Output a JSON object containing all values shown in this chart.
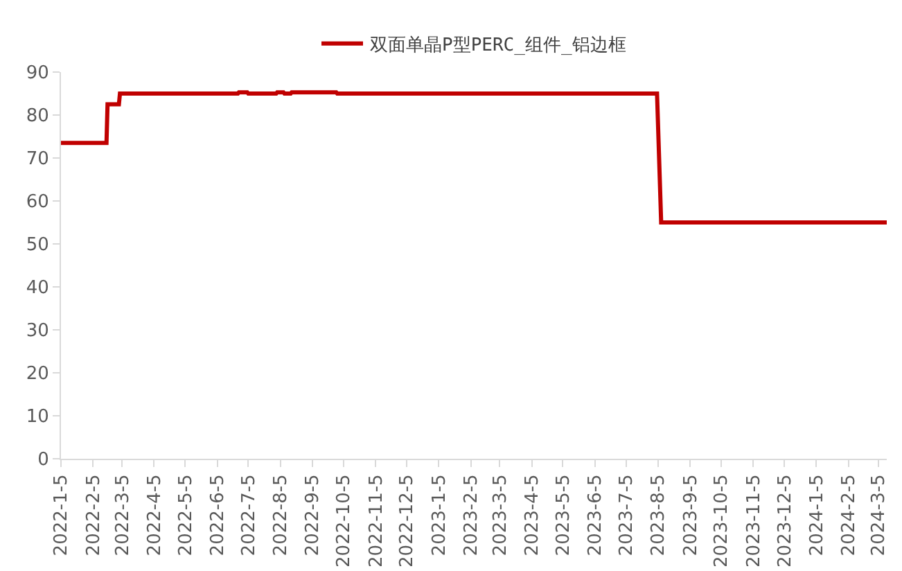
{
  "chart_data": {
    "type": "line",
    "legend": "top",
    "grid": false,
    "marker": "none",
    "line_style": "solid",
    "xlim": [
      "2022-01-05",
      "2024-03-13"
    ],
    "ylim": [
      0,
      90
    ],
    "yticks": [
      0,
      10,
      20,
      30,
      40,
      50,
      60,
      70,
      80,
      90
    ],
    "xticks": [
      {
        "value": "2022-01-05",
        "label": "2022-1-5"
      },
      {
        "value": "2022-02-05",
        "label": "2022-2-5"
      },
      {
        "value": "2022-03-05",
        "label": "2022-3-5"
      },
      {
        "value": "2022-04-05",
        "label": "2022-4-5"
      },
      {
        "value": "2022-05-05",
        "label": "2022-5-5"
      },
      {
        "value": "2022-06-05",
        "label": "2022-6-5"
      },
      {
        "value": "2022-07-05",
        "label": "2022-7-5"
      },
      {
        "value": "2022-08-05",
        "label": "2022-8-5"
      },
      {
        "value": "2022-09-05",
        "label": "2022-9-5"
      },
      {
        "value": "2022-10-05",
        "label": "2022-10-5"
      },
      {
        "value": "2022-11-05",
        "label": "2022-11-5"
      },
      {
        "value": "2022-12-05",
        "label": "2022-12-5"
      },
      {
        "value": "2023-01-05",
        "label": "2023-1-5"
      },
      {
        "value": "2023-02-05",
        "label": "2023-2-5"
      },
      {
        "value": "2023-03-05",
        "label": "2023-3-5"
      },
      {
        "value": "2023-04-05",
        "label": "2023-4-5"
      },
      {
        "value": "2023-05-05",
        "label": "2023-5-5"
      },
      {
        "value": "2023-06-05",
        "label": "2023-6-5"
      },
      {
        "value": "2023-07-05",
        "label": "2023-7-5"
      },
      {
        "value": "2023-08-05",
        "label": "2023-8-5"
      },
      {
        "value": "2023-09-05",
        "label": "2023-9-5"
      },
      {
        "value": "2023-10-05",
        "label": "2023-10-5"
      },
      {
        "value": "2023-11-05",
        "label": "2023-11-5"
      },
      {
        "value": "2023-12-05",
        "label": "2023-12-5"
      },
      {
        "value": "2024-01-05",
        "label": "2024-1-5"
      },
      {
        "value": "2024-02-05",
        "label": "2024-2-5"
      },
      {
        "value": "2024-03-05",
        "label": "2024-3-5"
      }
    ],
    "series": [
      {
        "name": "双面单晶P型PERC_组件_铝边框",
        "color": "#c00000",
        "x": [
          "2022-01-05",
          "2022-02-18",
          "2022-02-19",
          "2022-03-02",
          "2022-03-03",
          "2022-06-25",
          "2022-06-26",
          "2022-07-04",
          "2022-07-05",
          "2022-08-01",
          "2022-08-02",
          "2022-08-08",
          "2022-08-09",
          "2022-08-15",
          "2022-08-16",
          "2022-08-25",
          "2022-08-26",
          "2022-09-28",
          "2022-09-29",
          "2023-08-04",
          "2023-08-08",
          "2024-03-13"
        ],
        "values": [
          73.5,
          73.5,
          82.5,
          82.5,
          85,
          85,
          85.3,
          85.3,
          85,
          85,
          85.3,
          85.3,
          85,
          85,
          85.3,
          85.3,
          85.3,
          85.3,
          85,
          85,
          55,
          55
        ]
      }
    ]
  }
}
